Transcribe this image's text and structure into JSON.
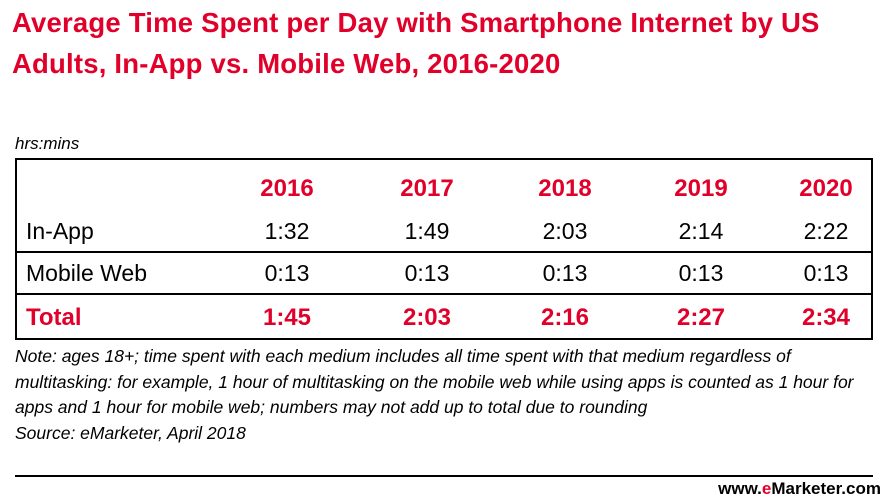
{
  "chart_data": {
    "type": "table",
    "title": "Average Time Spent per Day with Smartphone Internet by US Adults, In-App vs. Mobile Web, 2016-2020",
    "unit": "hrs:mins",
    "columns": [
      "2016",
      "2017",
      "2018",
      "2019",
      "2020"
    ],
    "rows": [
      {
        "label": "In-App",
        "values": [
          "1:32",
          "1:49",
          "2:03",
          "2:14",
          "2:22"
        ]
      },
      {
        "label": "Mobile Web",
        "values": [
          "0:13",
          "0:13",
          "0:13",
          "0:13",
          "0:13"
        ]
      },
      {
        "label": "Total",
        "values": [
          "1:45",
          "2:03",
          "2:16",
          "2:27",
          "2:34"
        ]
      }
    ],
    "note": "Note: ages 18+; time spent with each medium includes all time spent with that medium regardless of multitasking: for example, 1 hour of multitasking on the mobile web while using apps is counted as 1 hour for apps and 1 hour for mobile web; numbers may not add up to total due to rounding",
    "source": "Source: eMarketer, April 2018"
  },
  "branding": {
    "prefix": "www.",
    "accent": "e",
    "suffix": "Marketer.com"
  },
  "colors": {
    "accent": "#e0002a",
    "text": "#000000"
  }
}
